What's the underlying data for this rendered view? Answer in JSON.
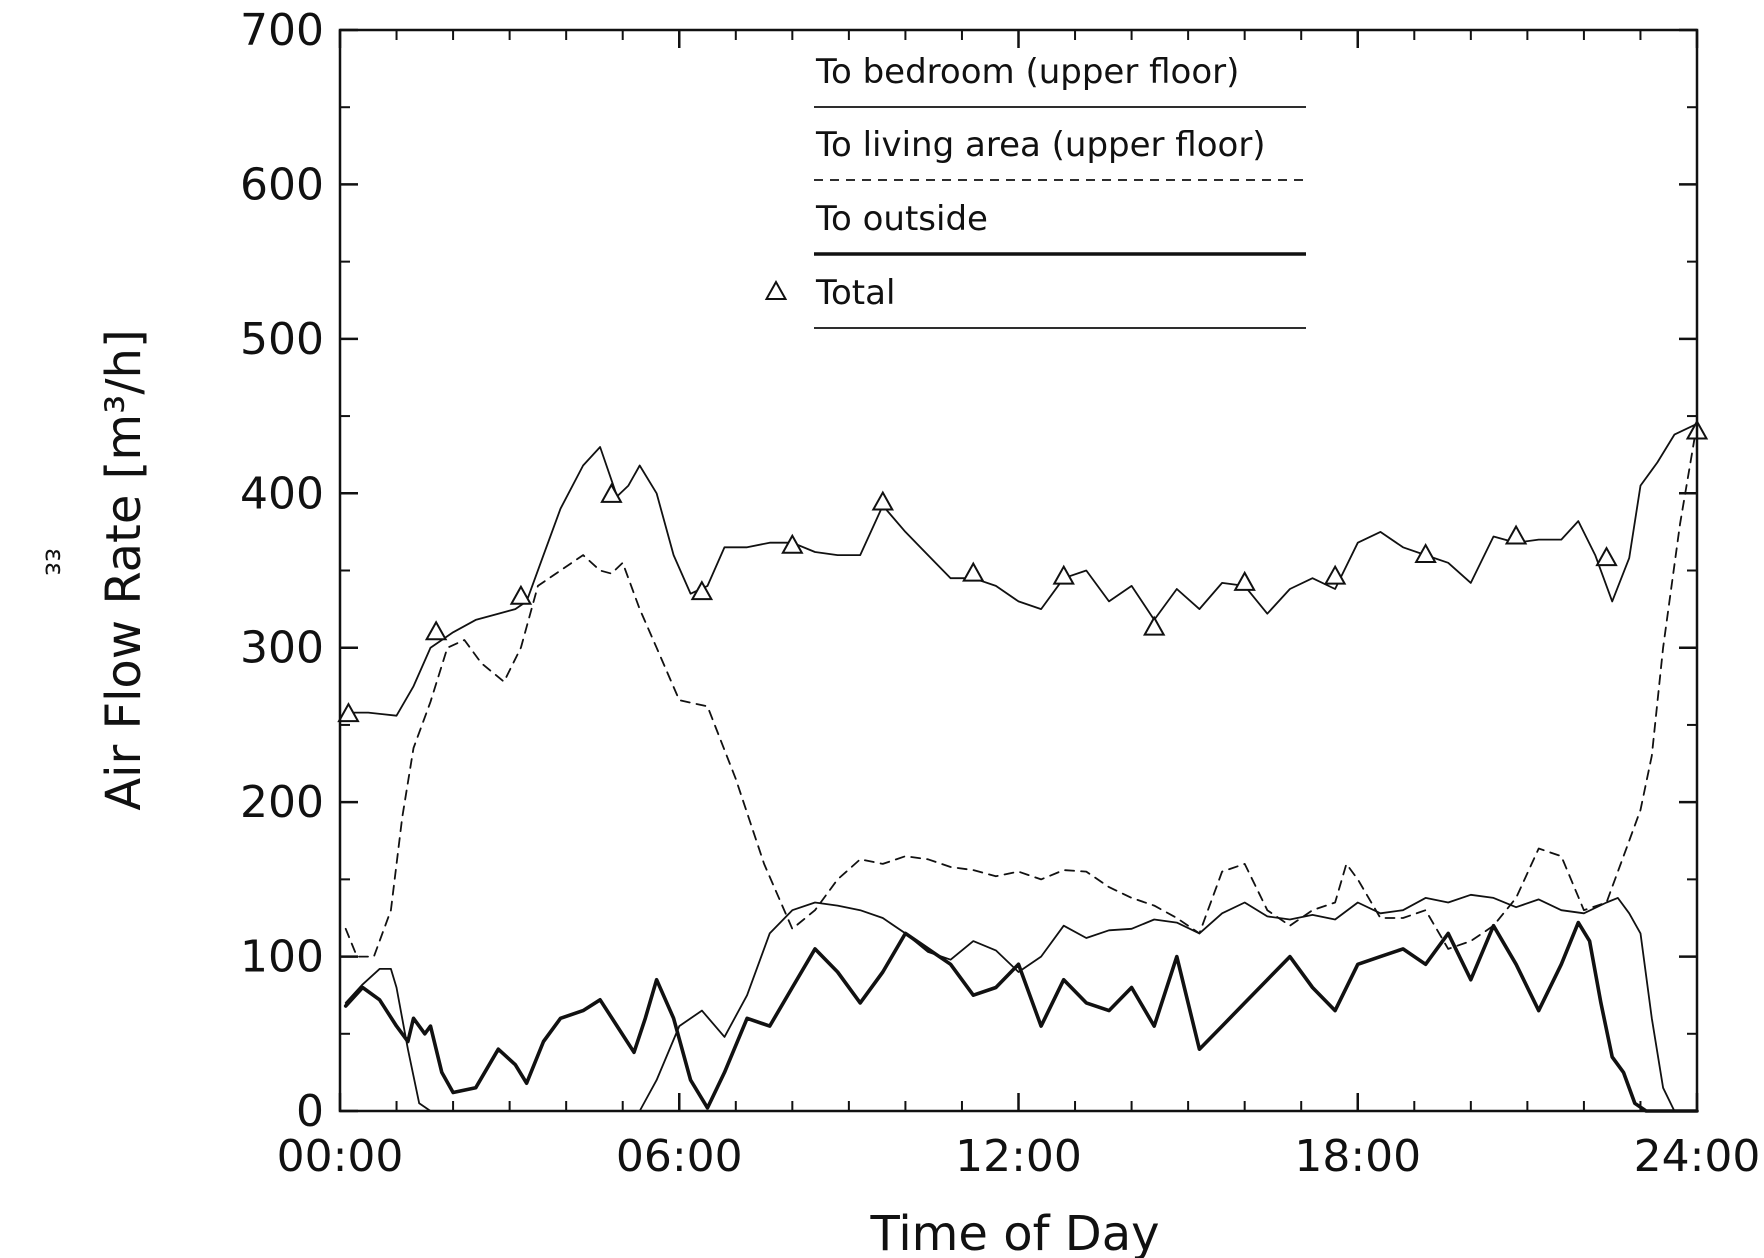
{
  "page_mark": "εε",
  "chart_data": {
    "type": "line",
    "xlabel": "Time of Day",
    "ylabel": "Air Flow Rate [m³/h]",
    "xlim": [
      0,
      24
    ],
    "ylim": [
      0,
      700
    ],
    "x_ticks": [
      0,
      6,
      12,
      18,
      24
    ],
    "x_tick_labels": [
      "00:00",
      "06:00",
      "12:00",
      "18:00",
      "24:00"
    ],
    "y_ticks": [
      0,
      100,
      200,
      300,
      400,
      500,
      600,
      700
    ],
    "y_tick_labels": [
      "0",
      "100",
      "200",
      "300",
      "400",
      "500",
      "600",
      "700"
    ],
    "grid": false,
    "legend_position": "top-center",
    "series": [
      {
        "name": "To bedroom (upper floor)",
        "style": "thin-solid",
        "x": [
          0.1,
          0.4,
          0.7,
          0.9,
          1.0,
          1.2,
          1.4,
          1.6,
          2.0,
          4.0,
          5.3,
          5.6,
          6.0,
          6.4,
          6.8,
          7.2,
          7.6,
          8.0,
          8.4,
          8.8,
          9.2,
          9.6,
          10.0,
          10.4,
          10.8,
          11.2,
          11.6,
          12.0,
          12.4,
          12.8,
          13.2,
          13.6,
          14.0,
          14.4,
          14.8,
          15.2,
          15.6,
          16.0,
          16.4,
          16.8,
          17.2,
          17.6,
          18.0,
          18.4,
          18.8,
          19.2,
          19.6,
          20.0,
          20.4,
          20.8,
          21.2,
          21.6,
          22.0,
          22.4,
          22.6,
          22.8,
          23.0,
          23.2,
          23.4,
          23.6,
          24.0
        ],
        "y": [
          70,
          82,
          92,
          92,
          80,
          40,
          5,
          0,
          0,
          0,
          0,
          20,
          55,
          65,
          48,
          75,
          115,
          130,
          135,
          133,
          130,
          125,
          115,
          103,
          98,
          110,
          104,
          90,
          100,
          120,
          112,
          117,
          118,
          124,
          122,
          115,
          128,
          135,
          126,
          124,
          127,
          124,
          135,
          128,
          130,
          138,
          135,
          140,
          138,
          132,
          137,
          130,
          128,
          135,
          138,
          128,
          115,
          60,
          15,
          0,
          0
        ]
      },
      {
        "name": "To living area (upper floor)",
        "style": "dashed",
        "x": [
          0.1,
          0.3,
          0.6,
          0.9,
          1.1,
          1.3,
          1.6,
          1.9,
          2.2,
          2.5,
          2.9,
          3.2,
          3.5,
          3.9,
          4.3,
          4.6,
          4.8,
          5.0,
          5.3,
          5.6,
          6.0,
          6.5,
          7.0,
          7.5,
          8.0,
          8.4,
          8.8,
          9.2,
          9.6,
          10.0,
          10.4,
          10.8,
          11.2,
          11.6,
          12.0,
          12.4,
          12.8,
          13.2,
          13.6,
          14.0,
          14.4,
          14.8,
          15.2,
          15.6,
          16.0,
          16.4,
          16.8,
          17.2,
          17.6,
          17.8,
          18.0,
          18.4,
          18.8,
          19.2,
          19.6,
          20.0,
          20.4,
          20.8,
          21.2,
          21.6,
          22.0,
          22.4,
          22.8,
          23.0,
          23.2,
          23.4,
          23.7,
          24.0
        ],
        "y": [
          118,
          100,
          100,
          130,
          190,
          235,
          265,
          300,
          305,
          290,
          278,
          300,
          340,
          350,
          360,
          350,
          348,
          355,
          325,
          300,
          266,
          262,
          215,
          160,
          118,
          130,
          150,
          163,
          160,
          165,
          163,
          158,
          156,
          152,
          155,
          150,
          156,
          155,
          145,
          138,
          133,
          125,
          115,
          155,
          160,
          130,
          120,
          130,
          135,
          160,
          150,
          125,
          125,
          130,
          105,
          110,
          120,
          138,
          170,
          165,
          130,
          135,
          175,
          195,
          230,
          300,
          380,
          445
        ]
      },
      {
        "name": "To outside",
        "style": "thick-solid",
        "x": [
          0.1,
          0.4,
          0.7,
          1.0,
          1.2,
          1.3,
          1.5,
          1.6,
          1.8,
          2.0,
          2.4,
          2.8,
          3.1,
          3.3,
          3.6,
          3.9,
          4.3,
          4.6,
          4.9,
          5.2,
          5.4,
          5.6,
          5.9,
          6.2,
          6.5,
          6.8,
          7.2,
          7.6,
          8.0,
          8.4,
          8.8,
          9.2,
          9.6,
          10.0,
          10.4,
          10.8,
          11.2,
          11.6,
          12.0,
          12.4,
          12.8,
          13.2,
          13.6,
          14.0,
          14.4,
          14.8,
          15.2,
          15.6,
          16.0,
          16.4,
          16.8,
          17.2,
          17.6,
          18.0,
          18.4,
          18.8,
          19.2,
          19.6,
          20.0,
          20.4,
          20.8,
          21.2,
          21.6,
          21.9,
          22.1,
          22.3,
          22.5,
          22.7,
          22.9,
          23.1,
          23.4,
          24.0
        ],
        "y": [
          68,
          80,
          72,
          55,
          45,
          60,
          50,
          55,
          25,
          12,
          15,
          40,
          30,
          18,
          45,
          60,
          65,
          72,
          55,
          38,
          60,
          85,
          60,
          20,
          2,
          25,
          60,
          55,
          80,
          105,
          90,
          70,
          90,
          115,
          105,
          95,
          75,
          80,
          95,
          55,
          85,
          70,
          65,
          80,
          55,
          100,
          40,
          55,
          70,
          85,
          100,
          80,
          65,
          95,
          100,
          105,
          95,
          115,
          85,
          120,
          95,
          65,
          95,
          122,
          110,
          70,
          35,
          25,
          5,
          0,
          0,
          0
        ]
      },
      {
        "name": "Total",
        "style": "thin-solid-with-markers",
        "x": [
          0.1,
          0.5,
          1.0,
          1.3,
          1.6,
          2.0,
          2.4,
          2.8,
          3.1,
          3.3,
          3.6,
          3.9,
          4.3,
          4.6,
          4.9,
          5.1,
          5.3,
          5.6,
          5.9,
          6.2,
          6.5,
          6.8,
          7.2,
          7.6,
          8.0,
          8.4,
          8.8,
          9.2,
          9.6,
          10.0,
          10.4,
          10.8,
          11.2,
          11.6,
          12.0,
          12.4,
          12.8,
          13.2,
          13.6,
          14.0,
          14.4,
          14.8,
          15.2,
          15.6,
          16.0,
          16.4,
          16.8,
          17.2,
          17.6,
          18.0,
          18.4,
          18.8,
          19.2,
          19.6,
          20.0,
          20.4,
          20.8,
          21.2,
          21.6,
          21.9,
          22.2,
          22.5,
          22.8,
          23.0,
          23.3,
          23.6,
          24.0
        ],
        "y": [
          258,
          258,
          256,
          275,
          300,
          310,
          318,
          322,
          325,
          330,
          360,
          390,
          418,
          430,
          398,
          405,
          418,
          400,
          360,
          335,
          340,
          365,
          365,
          368,
          368,
          362,
          360,
          360,
          392,
          375,
          360,
          345,
          345,
          340,
          330,
          325,
          345,
          350,
          330,
          340,
          318,
          338,
          325,
          342,
          340,
          322,
          338,
          345,
          338,
          368,
          375,
          365,
          360,
          355,
          342,
          372,
          368,
          370,
          370,
          382,
          360,
          330,
          358,
          405,
          420,
          438,
          445
        ]
      }
    ],
    "marker_points": [
      {
        "x": 0.15,
        "y": 257
      },
      {
        "x": 1.7,
        "y": 310
      },
      {
        "x": 3.2,
        "y": 333
      },
      {
        "x": 4.8,
        "y": 399
      },
      {
        "x": 6.4,
        "y": 336
      },
      {
        "x": 8.0,
        "y": 366
      },
      {
        "x": 9.6,
        "y": 394
      },
      {
        "x": 11.2,
        "y": 348
      },
      {
        "x": 12.8,
        "y": 346
      },
      {
        "x": 14.4,
        "y": 313
      },
      {
        "x": 16.0,
        "y": 342
      },
      {
        "x": 17.6,
        "y": 346
      },
      {
        "x": 19.2,
        "y": 360
      },
      {
        "x": 20.8,
        "y": 372
      },
      {
        "x": 22.4,
        "y": 358
      },
      {
        "x": 24.0,
        "y": 440
      }
    ]
  }
}
